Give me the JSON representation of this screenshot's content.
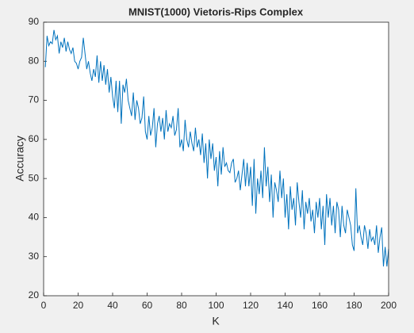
{
  "chart_data": {
    "type": "line",
    "title": "MNIST(1000) Vietoris-Rips Complex",
    "xlabel": "K",
    "ylabel": "Accuracy",
    "x": [
      1,
      2,
      3,
      4,
      5,
      6,
      7,
      8,
      9,
      10,
      11,
      12,
      13,
      14,
      15,
      16,
      17,
      18,
      19,
      20,
      21,
      22,
      23,
      24,
      25,
      26,
      27,
      28,
      29,
      30,
      31,
      32,
      33,
      34,
      35,
      36,
      37,
      38,
      39,
      40,
      41,
      42,
      43,
      44,
      45,
      46,
      47,
      48,
      49,
      50,
      51,
      52,
      53,
      54,
      55,
      56,
      57,
      58,
      59,
      60,
      61,
      62,
      63,
      64,
      65,
      66,
      67,
      68,
      69,
      70,
      71,
      72,
      73,
      74,
      75,
      76,
      77,
      78,
      79,
      80,
      81,
      82,
      83,
      84,
      85,
      86,
      87,
      88,
      89,
      90,
      91,
      92,
      93,
      94,
      95,
      96,
      97,
      98,
      99,
      100,
      101,
      102,
      103,
      104,
      105,
      106,
      107,
      108,
      109,
      110,
      111,
      112,
      113,
      114,
      115,
      116,
      117,
      118,
      119,
      120,
      121,
      122,
      123,
      124,
      125,
      126,
      127,
      128,
      129,
      130,
      131,
      132,
      133,
      134,
      135,
      136,
      137,
      138,
      139,
      140,
      141,
      142,
      143,
      144,
      145,
      146,
      147,
      148,
      149,
      150,
      151,
      152,
      153,
      154,
      155,
      156,
      157,
      158,
      159,
      160,
      161,
      162,
      163,
      164,
      165,
      166,
      167,
      168,
      169,
      170,
      171,
      172,
      173,
      174,
      175,
      176,
      177,
      178,
      179,
      180,
      181,
      182,
      183,
      184,
      185,
      186,
      187,
      188,
      189,
      190,
      191,
      192,
      193,
      194,
      195,
      196,
      197,
      198,
      199,
      200
    ],
    "series": [
      {
        "name": "Accuracy",
        "color": "#0072bd",
        "values": [
          78.5,
          86.5,
          84,
          85,
          84.5,
          88,
          85.5,
          86.5,
          82,
          85,
          83.5,
          86,
          82.5,
          85,
          83,
          82,
          83.5,
          80,
          79.5,
          78,
          80,
          81,
          86,
          82,
          78,
          80,
          77,
          75,
          78,
          76,
          81.5,
          74.5,
          80,
          75,
          79,
          74,
          78,
          72,
          76,
          71,
          68,
          75,
          67,
          75,
          64,
          74,
          72,
          75.5,
          70,
          68,
          66,
          72,
          65,
          70,
          68,
          64,
          65.5,
          71,
          62,
          60,
          66,
          61,
          63,
          68,
          58,
          64,
          66,
          62,
          65.5,
          60,
          67.5,
          62,
          64,
          63,
          66,
          61,
          62.5,
          68,
          58,
          60,
          57,
          65,
          60,
          58,
          62,
          59,
          57,
          63,
          58,
          60,
          56,
          61.5,
          54,
          59,
          50,
          60,
          55,
          59,
          52,
          55.5,
          48,
          57,
          51,
          58,
          53,
          54,
          52,
          51.5,
          54,
          55,
          49,
          50,
          52,
          47,
          51,
          55,
          48,
          54,
          48,
          53,
          43,
          55,
          41,
          50,
          46,
          52,
          45,
          58,
          48,
          53,
          44,
          51,
          40,
          49,
          47,
          44,
          52,
          45,
          50,
          40,
          46,
          37,
          48,
          42,
          45,
          38,
          49,
          44,
          40,
          47,
          37,
          44,
          41,
          45,
          39,
          42,
          36,
          44,
          40,
          45,
          37,
          43,
          33,
          46,
          40,
          45,
          38,
          43,
          36,
          44,
          42,
          35,
          43,
          38,
          36,
          42,
          40,
          38,
          33,
          31.5,
          47.5,
          36,
          38,
          35,
          33,
          38,
          36,
          32,
          37,
          34,
          35,
          33,
          38,
          31,
          35,
          37.5,
          27.5,
          32.5,
          27.5,
          32
        ]
      }
    ],
    "xlim": [
      0,
      200
    ],
    "xticks": [
      0,
      20,
      40,
      60,
      80,
      100,
      120,
      140,
      160,
      180,
      200
    ],
    "ylim": [
      20,
      90
    ],
    "yticks": [
      20,
      30,
      40,
      50,
      60,
      70,
      80,
      90
    ]
  }
}
